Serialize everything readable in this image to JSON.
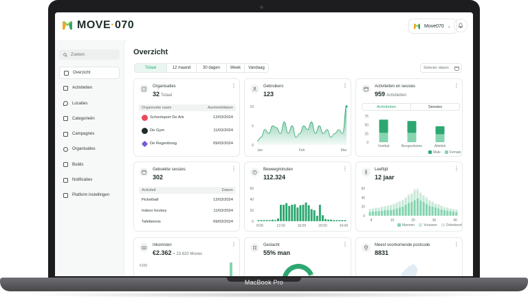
{
  "device": {
    "label": "MacBook Pro"
  },
  "header": {
    "logo_text": "MOVE",
    "logo_suffix": "070",
    "account_label": "Move070"
  },
  "sidebar": {
    "search_placeholder": "Zoeken",
    "items": [
      {
        "label": "Overzicht",
        "active": true
      },
      {
        "label": "Activiteiten"
      },
      {
        "label": "Locaties"
      },
      {
        "label": "Categorieën"
      },
      {
        "label": "Campagnes"
      },
      {
        "label": "Organisaties"
      },
      {
        "label": "Builds"
      },
      {
        "label": "Notificaties"
      },
      {
        "label": "Platform instellingen"
      }
    ]
  },
  "main": {
    "title": "Overzicht",
    "tabs": [
      {
        "label": "Totaal",
        "active": true
      },
      {
        "label": "12 maand"
      },
      {
        "label": "30 dagen"
      },
      {
        "label": "Week"
      },
      {
        "label": "Vandaag"
      }
    ],
    "date_placeholder": "Selecter datum"
  },
  "cards": {
    "organisaties": {
      "title": "Organisaties",
      "value": "32",
      "sub": "Totaal",
      "col1": "Organisatie naam",
      "col2": "Aanmelddatum",
      "rows": [
        {
          "name": "Schoolsport De Ark",
          "date": "12/03/2024",
          "color": "#e84b5a"
        },
        {
          "name": "De Gym",
          "date": "11/03/2024",
          "color": "#1e2c2a"
        },
        {
          "name": "De Regenboog",
          "date": "09/03/2024",
          "color": "#7a5bd6"
        }
      ]
    },
    "gebruikers": {
      "title": "Gebruikers",
      "value": "123",
      "y_ticks": [
        "10",
        "5",
        "0"
      ],
      "x_ticks": [
        "Jan",
        "Feb",
        "Mar"
      ]
    },
    "activiteiten": {
      "title": "Activiteiten en sessies",
      "value": "959",
      "sub": "Activiteiten",
      "seg_on": "Activiteiten",
      "seg_off": "Sessies",
      "y_ticks": [
        "75",
        "50",
        "25",
        "0"
      ],
      "legend": [
        "Male",
        "Female"
      ]
    },
    "sessies": {
      "title": "Geboekte sessies",
      "value": "302",
      "col1": "Activiteit",
      "col2": "Datum",
      "rows": [
        {
          "name": "Pickelball",
          "date": "12/03/2024"
        },
        {
          "name": "Indoor hockey",
          "date": "11/03/2024"
        },
        {
          "name": "Tafeltennis",
          "date": "09/03/2024"
        }
      ]
    },
    "beweeg": {
      "title": "Beweegminuten",
      "value": "112.324",
      "y_ticks": [
        "60",
        "40",
        "20",
        "0"
      ],
      "x_ticks": [
        "8:00",
        "12:00",
        "16:00",
        "20:00",
        "24:00"
      ]
    },
    "leeftijd": {
      "title": "Leeftijd",
      "value": "12 jaar",
      "y_ticks": [
        "60",
        "40",
        "20",
        "0"
      ],
      "x_ticks": [
        "8",
        "10",
        "20",
        "30",
        "40"
      ],
      "legend": [
        "Mannen",
        "Vrouwen",
        "Onbekend"
      ]
    },
    "inkomsten": {
      "title": "Inkomsten",
      "value": "€2.362",
      "sub": "≈ 23.620 Moves",
      "y_tick": "€100"
    },
    "geslacht": {
      "title": "Geslacht",
      "value": "55% man"
    },
    "postcode": {
      "title": "Meest voorkomende postcode",
      "value": "8831"
    }
  },
  "chart_data": [
    {
      "type": "area",
      "title": "Gebruikers",
      "x_ticks": [
        "Jan",
        "Feb",
        "Mar"
      ],
      "ylim": [
        0,
        10
      ],
      "values": [
        1,
        2,
        4,
        3,
        5,
        4.5,
        3,
        6,
        3,
        5,
        2,
        3,
        5,
        4,
        6,
        3,
        5,
        3,
        4,
        2,
        3,
        4,
        3,
        10
      ]
    },
    {
      "type": "bar",
      "title": "Activiteiten en sessies",
      "categories": [
        "Voetbal",
        "Boogschieten",
        "Atletiek"
      ],
      "ylim": [
        0,
        75
      ],
      "series": [
        {
          "name": "Male",
          "values": [
            38,
            34,
            23
          ]
        },
        {
          "name": "Female",
          "values": [
            27,
            27,
            23
          ]
        }
      ]
    },
    {
      "type": "bar",
      "title": "Beweegminuten",
      "x_ticks": [
        "8:00",
        "12:00",
        "16:00",
        "20:00",
        "24:00"
      ],
      "ylim": [
        0,
        60
      ],
      "values": [
        2,
        2,
        2,
        2,
        2,
        3,
        2,
        5,
        30,
        30,
        33,
        28,
        30,
        31,
        25,
        29,
        30,
        34,
        29,
        22,
        20,
        10,
        30,
        11,
        4,
        3,
        3,
        2,
        2,
        2,
        2,
        2
      ]
    },
    {
      "type": "bar",
      "title": "Leeftijd",
      "x_ticks": [
        "8",
        "10",
        "20",
        "30",
        "40"
      ],
      "ylim": [
        0,
        60
      ],
      "series": [
        {
          "name": "Mannen",
          "values": [
            8,
            9,
            10,
            10,
            11,
            12,
            12,
            13,
            14,
            16,
            18,
            20,
            24,
            28,
            30,
            34,
            38,
            33,
            30,
            26,
            22,
            20,
            18,
            16,
            14,
            12,
            11,
            10,
            9,
            8
          ]
        },
        {
          "name": "Vrouwen",
          "values": [
            6,
            6,
            7,
            7,
            8,
            8,
            9,
            10,
            10,
            11,
            12,
            13,
            14,
            15,
            16,
            20,
            18,
            15,
            13,
            12,
            10,
            9,
            8,
            8,
            7,
            6,
            6,
            5,
            5,
            5
          ]
        },
        {
          "name": "Onbekend",
          "values": [
            1,
            1,
            1,
            1,
            1,
            1,
            1,
            1,
            2,
            2,
            2,
            2,
            2,
            3,
            3,
            4,
            3,
            3,
            2,
            2,
            2,
            2,
            1,
            1,
            1,
            1,
            1,
            1,
            1,
            1
          ]
        }
      ]
    }
  ],
  "colors": {
    "accent": "#2da771",
    "accent_light": "#86d4b0",
    "text": "#1e2c2a"
  }
}
